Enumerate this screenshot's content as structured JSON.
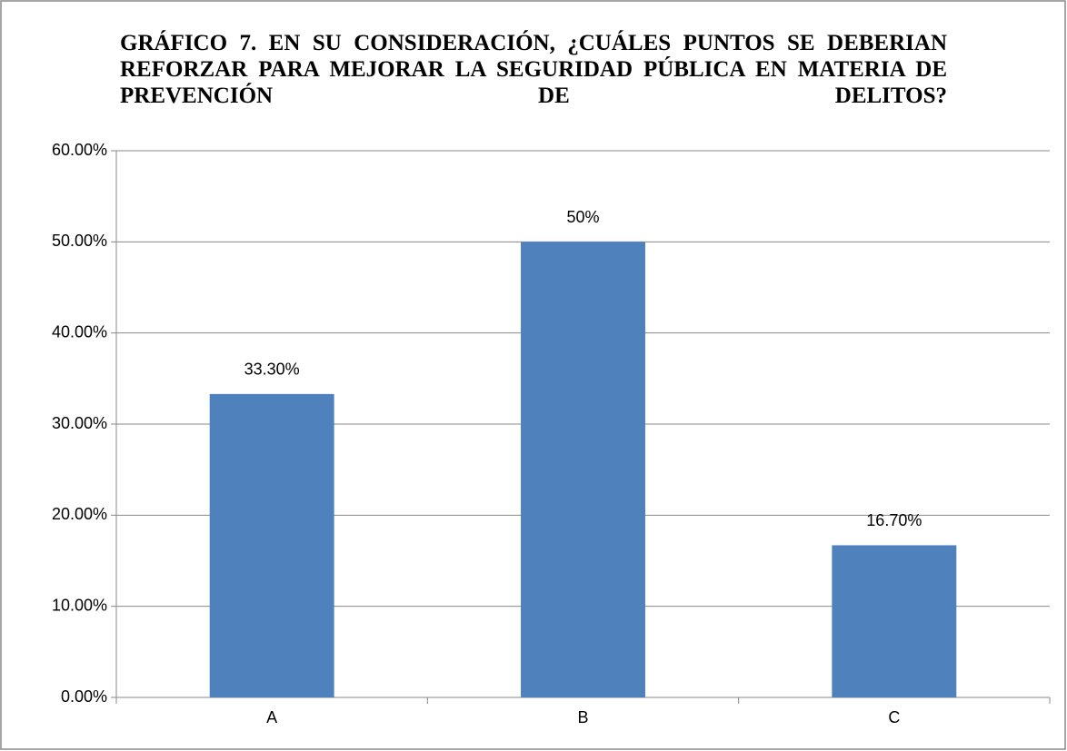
{
  "chart_data": {
    "type": "bar",
    "title": "GRÁFICO 7. EN SU CONSIDERACIÓN, ¿CUÁLES PUNTOS SE DEBERIAN REFORZAR PARA MEJORAR LA SEGURIDAD PÚBLICA EN MATERIA DE PREVENCIÓN DE DELITOS?",
    "categories": [
      "A",
      "B",
      "C"
    ],
    "values": [
      33.3,
      50,
      16.7
    ],
    "value_labels": [
      "33.30%",
      "50%",
      "16.70%"
    ],
    "color": "#4f81bd",
    "ylim": [
      0,
      60
    ],
    "yticks": [
      {
        "value": 0,
        "label": "0.00%"
      },
      {
        "value": 10,
        "label": "10.00%"
      },
      {
        "value": 20,
        "label": "20.00%"
      },
      {
        "value": 30,
        "label": "30.00%"
      },
      {
        "value": 40,
        "label": "40.00%"
      },
      {
        "value": 50,
        "label": "50.00%"
      },
      {
        "value": 60,
        "label": "60.00%"
      }
    ],
    "grid": true
  }
}
